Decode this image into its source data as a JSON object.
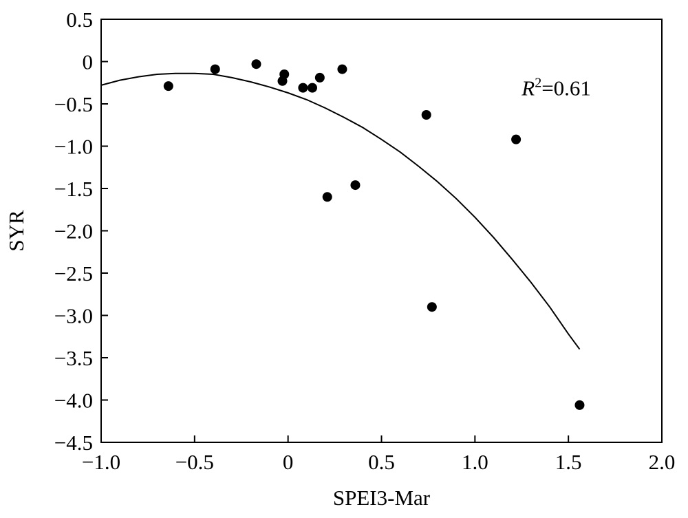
{
  "chart_data": {
    "type": "scatter",
    "title": "",
    "xlabel": "SPEI3-Mar",
    "ylabel": "SYR",
    "xlim": [
      -1.0,
      2.0
    ],
    "ylim": [
      -4.5,
      0.5
    ],
    "grid": false,
    "legend": "none",
    "x_ticks": [
      -1.0,
      -0.5,
      0,
      0.5,
      1.0,
      1.5,
      2.0
    ],
    "x_tick_labels": [
      "−1.0",
      "−0.5",
      "0",
      "0.5",
      "1.0",
      "1.5",
      "2.0"
    ],
    "y_ticks": [
      0.5,
      0,
      -0.5,
      -1.0,
      -1.5,
      -2.0,
      -2.5,
      -3.0,
      -3.5,
      -4.0,
      -4.5
    ],
    "y_tick_labels": [
      "0.5",
      "0",
      "−0.5",
      "−1.0",
      "−1.5",
      "−2.0",
      "−2.5",
      "−3.0",
      "−3.5",
      "−4.0",
      "−4.5"
    ],
    "annotation": {
      "r_symbol": "R",
      "superscript": "2",
      "value": "=0.61",
      "x": 1.25,
      "y": -0.4
    },
    "points": [
      {
        "x": -0.64,
        "y": -0.29
      },
      {
        "x": -0.39,
        "y": -0.09
      },
      {
        "x": -0.17,
        "y": -0.03
      },
      {
        "x": -0.03,
        "y": -0.23
      },
      {
        "x": -0.02,
        "y": -0.15
      },
      {
        "x": 0.08,
        "y": -0.31
      },
      {
        "x": 0.13,
        "y": -0.31
      },
      {
        "x": 0.17,
        "y": -0.19
      },
      {
        "x": 0.29,
        "y": -0.09
      },
      {
        "x": 0.21,
        "y": -1.6
      },
      {
        "x": 0.36,
        "y": -1.46
      },
      {
        "x": 0.74,
        "y": -0.63
      },
      {
        "x": 0.77,
        "y": -2.9
      },
      {
        "x": 1.22,
        "y": -0.92
      },
      {
        "x": 1.56,
        "y": -4.06
      }
    ],
    "fit_line": {
      "type": "polynomial",
      "x": [
        -1.0,
        -0.9,
        -0.8,
        -0.7,
        -0.6,
        -0.5,
        -0.4,
        -0.3,
        -0.2,
        -0.1,
        0.0,
        0.1,
        0.2,
        0.3,
        0.4,
        0.5,
        0.6,
        0.7,
        0.8,
        0.9,
        1.0,
        1.1,
        1.2,
        1.3,
        1.4,
        1.5,
        1.56
      ],
      "y": [
        -0.28,
        -0.22,
        -0.18,
        -0.15,
        -0.14,
        -0.14,
        -0.15,
        -0.19,
        -0.24,
        -0.3,
        -0.37,
        -0.45,
        -0.55,
        -0.66,
        -0.78,
        -0.92,
        -1.07,
        -1.24,
        -1.42,
        -1.62,
        -1.84,
        -2.08,
        -2.34,
        -2.61,
        -2.9,
        -3.22,
        -3.4
      ]
    },
    "colors": {
      "points": "#000000",
      "line": "#000000",
      "axes": "#000000"
    }
  }
}
